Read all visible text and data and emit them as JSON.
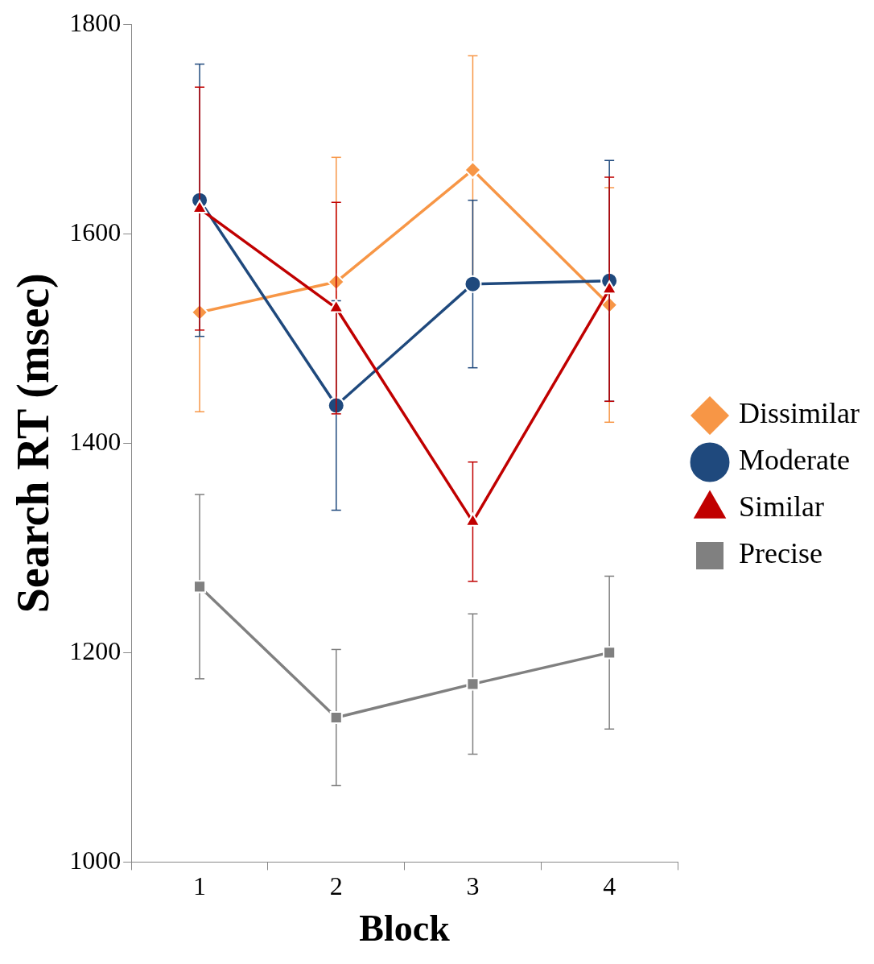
{
  "chart_data": {
    "type": "line",
    "xlabel": "Block",
    "ylabel": "Search RT (msec)",
    "categories": [
      "1",
      "2",
      "3",
      "4"
    ],
    "series": [
      {
        "name": "Dissimilar",
        "color": "#f79646",
        "marker": "diamond",
        "values": [
          1525,
          1554,
          1661,
          1532
        ],
        "errors": [
          95,
          119,
          109,
          112
        ]
      },
      {
        "name": "Moderate",
        "color": "#1f497d",
        "marker": "circle",
        "values": [
          1632,
          1436,
          1552,
          1555
        ],
        "errors": [
          130,
          100,
          80,
          115
        ]
      },
      {
        "name": "Similar",
        "color": "#c00000",
        "marker": "triangle",
        "values": [
          1624,
          1529,
          1325,
          1547
        ],
        "errors": [
          116,
          101,
          57,
          107
        ]
      },
      {
        "name": "Precise",
        "color": "#808080",
        "marker": "square",
        "values": [
          1263,
          1138,
          1170,
          1200
        ],
        "errors": [
          88,
          65,
          67,
          73
        ]
      }
    ],
    "ylim": [
      1000,
      1800
    ],
    "yticks": [
      1000,
      1200,
      1400,
      1600,
      1800
    ],
    "grid": false,
    "legend": "right",
    "line_style": "solid"
  }
}
